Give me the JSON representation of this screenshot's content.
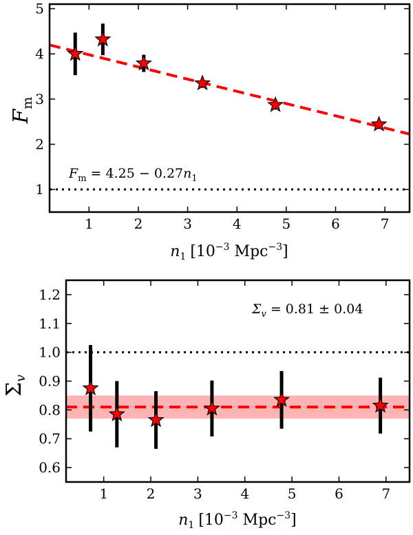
{
  "chart_data": [
    {
      "type": "scatter",
      "id": "top",
      "ylabel": "F",
      "ylabel_sub": "m",
      "xlabel": "n",
      "xlabel_sub": "1",
      "xlabel_units": "[10",
      "xlabel_exp": "−3",
      "xlabel_units2": " Mpc",
      "xlabel_exp2": "−3",
      "xlabel_close": "]",
      "xlim": [
        0.2,
        7.5
      ],
      "ylim": [
        0.5,
        5.1
      ],
      "xticks": [
        1,
        2,
        3,
        4,
        5,
        6,
        7
      ],
      "xtick_labels": [
        "1",
        "2",
        "3",
        "4",
        "5",
        "6",
        "7"
      ],
      "yticks": [
        1,
        2,
        3,
        4,
        5
      ],
      "ytick_labels": [
        "1",
        "2",
        "3",
        "4",
        "5"
      ],
      "points": [
        {
          "x": 0.72,
          "y": 4.0,
          "err": 0.47
        },
        {
          "x": 1.28,
          "y": 4.32,
          "err": 0.35
        },
        {
          "x": 2.11,
          "y": 3.79,
          "err": 0.19
        },
        {
          "x": 3.3,
          "y": 3.35,
          "err": 0.1
        },
        {
          "x": 4.78,
          "y": 2.87,
          "err": 0.1
        },
        {
          "x": 6.88,
          "y": 2.44,
          "err": 0.1
        }
      ],
      "fit": {
        "intercept": 4.25,
        "slope": -0.27
      },
      "reference_y": 1.0,
      "annotation": {
        "lhs": "F",
        "lhs_sub": "m",
        "rhs": " = 4.25 − 0.27",
        "var": "n",
        "var_sub": "1",
        "x": 0.5,
        "y": 1.38
      },
      "colors": {
        "marker": "#ff0000",
        "fit": "#ff0000",
        "errorbar": "#000000",
        "reference": "#000000"
      }
    },
    {
      "type": "scatter",
      "id": "bottom",
      "ylabel": "Σ",
      "ylabel_sub": "v",
      "xlabel": "n",
      "xlabel_sub": "1",
      "xlabel_units": "[10",
      "xlabel_exp": "−3",
      "xlabel_units2": " Mpc",
      "xlabel_exp2": "−3",
      "xlabel_close": "]",
      "xlim": [
        0.2,
        7.5
      ],
      "ylim": [
        0.55,
        1.25
      ],
      "xticks": [
        1,
        2,
        3,
        4,
        5,
        6,
        7
      ],
      "xtick_labels": [
        "1",
        "2",
        "3",
        "4",
        "5",
        "6",
        "7"
      ],
      "yticks": [
        0.6,
        0.7,
        0.8,
        0.9,
        1.0,
        1.1,
        1.2
      ],
      "ytick_labels": [
        "0.6",
        "0.7",
        "0.8",
        "0.9",
        "1.0",
        "1.1",
        "1.2"
      ],
      "points": [
        {
          "x": 0.72,
          "y": 0.875,
          "err": 0.15
        },
        {
          "x": 1.28,
          "y": 0.785,
          "err": 0.115
        },
        {
          "x": 2.11,
          "y": 0.765,
          "err": 0.1
        },
        {
          "x": 3.3,
          "y": 0.805,
          "err": 0.097
        },
        {
          "x": 4.78,
          "y": 0.835,
          "err": 0.1
        },
        {
          "x": 6.88,
          "y": 0.815,
          "err": 0.097
        }
      ],
      "fit": {
        "value": 0.81,
        "error": 0.04
      },
      "reference_y": 1.0,
      "annotation": {
        "lhs": "Σ",
        "lhs_sub": "v",
        "rhs": " = 0.81 ± 0.04",
        "x": 4.1,
        "y": 1.15
      },
      "colors": {
        "marker": "#ff0000",
        "fit": "#ff0000",
        "band": "#ff9999",
        "errorbar": "#000000",
        "reference": "#000000"
      }
    }
  ]
}
